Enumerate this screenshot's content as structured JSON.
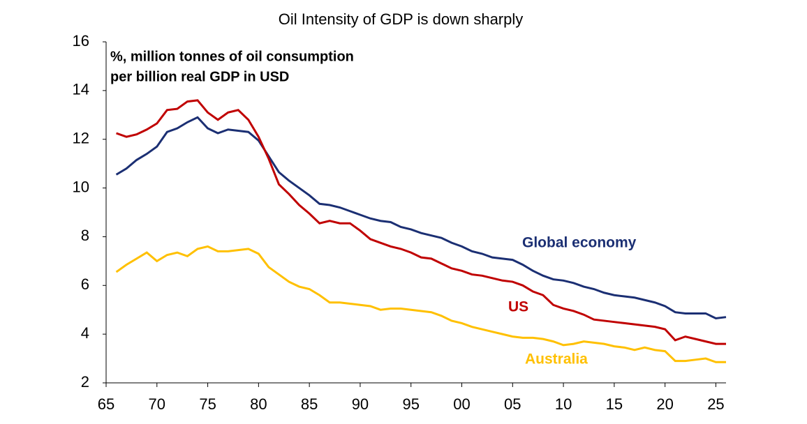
{
  "chart_data": {
    "type": "line",
    "title": "Oil Intensity of GDP is down sharply",
    "ylabel": [
      "%, million tonnes of oil consumption",
      "per billion real GDP in USD"
    ],
    "x": [
      1966,
      1967,
      1968,
      1969,
      1970,
      1971,
      1972,
      1973,
      1974,
      1975,
      1976,
      1977,
      1978,
      1979,
      1980,
      1981,
      1982,
      1983,
      1984,
      1985,
      1986,
      1987,
      1988,
      1989,
      1990,
      1991,
      1992,
      1993,
      1994,
      1995,
      1996,
      1997,
      1998,
      1999,
      2000,
      2001,
      2002,
      2003,
      2004,
      2005,
      2006,
      2007,
      2008,
      2009,
      2010,
      2011,
      2012,
      2013,
      2014,
      2015,
      2016,
      2017,
      2018,
      2019,
      2020,
      2021,
      2022,
      2023,
      2024,
      2025,
      2026
    ],
    "series": [
      {
        "name": "Global economy",
        "color": "#1b2f73",
        "values": [
          10.55,
          10.8,
          11.15,
          11.4,
          11.7,
          12.3,
          12.45,
          12.7,
          12.9,
          12.45,
          12.25,
          12.4,
          12.35,
          12.3,
          11.95,
          11.3,
          10.65,
          10.3,
          10.0,
          9.7,
          9.35,
          9.3,
          9.2,
          9.05,
          8.9,
          8.75,
          8.65,
          8.6,
          8.4,
          8.3,
          8.15,
          8.05,
          7.95,
          7.75,
          7.6,
          7.4,
          7.3,
          7.15,
          7.1,
          7.05,
          6.85,
          6.6,
          6.4,
          6.25,
          6.2,
          6.1,
          5.95,
          5.85,
          5.7,
          5.6,
          5.55,
          5.5,
          5.4,
          5.3,
          5.15,
          4.9,
          4.85,
          4.85,
          4.85,
          4.65,
          4.7
        ]
      },
      {
        "name": "US",
        "color": "#c00000",
        "values": [
          12.25,
          12.1,
          12.2,
          12.4,
          12.65,
          13.2,
          13.25,
          13.55,
          13.6,
          13.1,
          12.8,
          13.1,
          13.2,
          12.8,
          12.1,
          11.2,
          10.15,
          9.75,
          9.3,
          8.95,
          8.55,
          8.65,
          8.55,
          8.55,
          8.25,
          7.9,
          7.75,
          7.6,
          7.5,
          7.35,
          7.15,
          7.1,
          6.9,
          6.7,
          6.6,
          6.45,
          6.4,
          6.3,
          6.2,
          6.15,
          6.0,
          5.75,
          5.6,
          5.2,
          5.05,
          4.95,
          4.8,
          4.6,
          4.55,
          4.5,
          4.45,
          4.4,
          4.35,
          4.3,
          4.2,
          3.75,
          3.9,
          3.8,
          3.7,
          3.6,
          3.6
        ]
      },
      {
        "name": "Australia",
        "color": "#ffc000",
        "values": [
          6.55,
          6.85,
          7.1,
          7.35,
          7.0,
          7.25,
          7.35,
          7.2,
          7.5,
          7.6,
          7.4,
          7.4,
          7.45,
          7.5,
          7.3,
          6.75,
          6.45,
          6.15,
          5.95,
          5.85,
          5.6,
          5.3,
          5.3,
          5.25,
          5.2,
          5.15,
          5.0,
          5.05,
          5.05,
          5.0,
          4.95,
          4.9,
          4.75,
          4.55,
          4.45,
          4.3,
          4.2,
          4.1,
          4.0,
          3.9,
          3.85,
          3.85,
          3.8,
          3.7,
          3.55,
          3.6,
          3.7,
          3.65,
          3.6,
          3.5,
          3.45,
          3.35,
          3.45,
          3.35,
          3.3,
          2.9,
          2.9,
          2.95,
          3.0,
          2.85,
          2.85
        ]
      }
    ],
    "xlim": [
      1965,
      2026
    ],
    "xticks": [
      {
        "value": 1965,
        "label": "65"
      },
      {
        "value": 1970,
        "label": "70"
      },
      {
        "value": 1975,
        "label": "75"
      },
      {
        "value": 1980,
        "label": "80"
      },
      {
        "value": 1985,
        "label": "85"
      },
      {
        "value": 1990,
        "label": "90"
      },
      {
        "value": 1995,
        "label": "95"
      },
      {
        "value": 2000,
        "label": "00"
      },
      {
        "value": 2005,
        "label": "05"
      },
      {
        "value": 2010,
        "label": "10"
      },
      {
        "value": 2015,
        "label": "15"
      },
      {
        "value": 2020,
        "label": "20"
      },
      {
        "value": 2025,
        "label": "25"
      }
    ],
    "ylim": [
      2,
      16
    ],
    "yticks": [
      2,
      4,
      6,
      8,
      10,
      12,
      14,
      16
    ]
  }
}
